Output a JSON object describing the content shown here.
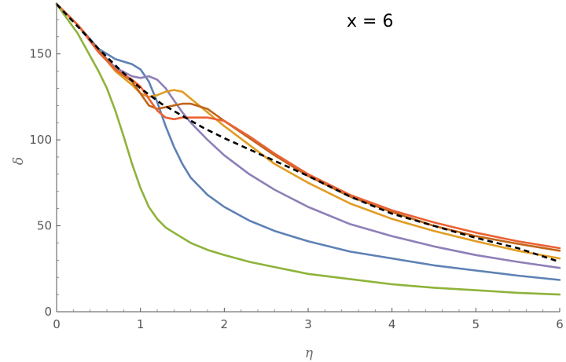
{
  "chart_data": {
    "type": "line",
    "title": "",
    "annotation": "x = 6",
    "xlabel": "η",
    "ylabel": "δ",
    "xlim": [
      0,
      6
    ],
    "ylim": [
      0,
      180
    ],
    "xticks": [
      0,
      1,
      2,
      3,
      4,
      5,
      6
    ],
    "yticks": [
      0,
      50,
      100,
      150
    ],
    "grid": false,
    "legend": "none",
    "series": [
      {
        "color": "#5E81B5",
        "dashed": false,
        "x": [
          0,
          0.25,
          0.5,
          0.7,
          0.9,
          1.0,
          1.1,
          1.2,
          1.3,
          1.4,
          1.5,
          1.6,
          1.8,
          2.0,
          2.3,
          2.6,
          3.0,
          3.5,
          4.0,
          4.5,
          5.0,
          5.5,
          6.0
        ],
        "y": [
          179,
          167,
          153,
          147,
          144,
          141,
          134,
          122,
          108,
          96,
          86,
          78,
          68,
          61,
          53,
          47,
          41,
          35,
          31,
          27,
          24,
          21,
          18.5
        ]
      },
      {
        "color": "#8F7FB8",
        "dashed": false,
        "x": [
          0,
          0.25,
          0.5,
          0.7,
          0.9,
          1.0,
          1.1,
          1.2,
          1.3,
          1.4,
          1.5,
          1.6,
          1.8,
          2.0,
          2.3,
          2.6,
          3.0,
          3.5,
          4.0,
          4.5,
          5.0,
          5.5,
          6.0
        ],
        "y": [
          179,
          167,
          152,
          142,
          137,
          136,
          137,
          135,
          130,
          123,
          116,
          110,
          100,
          91,
          80,
          71,
          61,
          51,
          44,
          38,
          33,
          29,
          25.5
        ]
      },
      {
        "color": "#E19C24",
        "dashed": false,
        "x": [
          0,
          0.25,
          0.5,
          0.7,
          0.9,
          1.0,
          1.1,
          1.2,
          1.3,
          1.4,
          1.5,
          1.6,
          1.8,
          2.0,
          2.3,
          2.6,
          3.0,
          3.5,
          4.0,
          4.5,
          5.0,
          5.5,
          6.0
        ],
        "y": [
          179,
          167,
          152,
          140,
          132,
          127,
          125,
          126,
          128,
          129,
          128,
          124,
          116,
          108,
          97,
          86,
          75,
          63,
          54,
          47,
          41,
          35.5,
          31
        ]
      },
      {
        "color": "#C0651A",
        "dashed": false,
        "x": [
          0,
          0.25,
          0.5,
          0.7,
          0.9,
          1.0,
          1.1,
          1.2,
          1.3,
          1.4,
          1.5,
          1.6,
          1.8,
          2.0,
          2.3,
          2.6,
          3.0,
          3.5,
          4.0,
          4.5,
          5.0,
          5.5,
          6.0
        ],
        "y": [
          179,
          167,
          152,
          141,
          134,
          127,
          120,
          118,
          119,
          120,
          121,
          121,
          118,
          111,
          101,
          91,
          79,
          67,
          58,
          50,
          44,
          39.5,
          35.5
        ]
      },
      {
        "color": "#EB6235",
        "dashed": false,
        "x": [
          0,
          0.25,
          0.5,
          0.7,
          0.9,
          1.0,
          1.1,
          1.2,
          1.3,
          1.4,
          1.5,
          1.6,
          1.8,
          2.0,
          2.3,
          2.6,
          3.0,
          3.5,
          4.0,
          4.5,
          5.0,
          5.5,
          6.0
        ],
        "y": [
          179,
          167,
          151,
          141,
          135,
          131,
          124,
          117,
          113,
          112,
          113,
          113,
          113,
          111,
          102,
          92,
          80,
          68,
          59,
          52,
          46,
          41,
          37
        ]
      },
      {
        "color": "#8EB33B",
        "dashed": false,
        "x": [
          0,
          0.25,
          0.5,
          0.6,
          0.7,
          0.8,
          0.9,
          1.0,
          1.1,
          1.2,
          1.3,
          1.4,
          1.6,
          1.8,
          2.0,
          2.3,
          2.6,
          3.0,
          3.5,
          4.0,
          4.5,
          5.0,
          5.5,
          6.0
        ],
        "y": [
          179,
          162,
          140,
          130,
          117,
          102,
          86,
          72,
          61,
          54,
          49,
          46,
          40,
          36,
          33,
          29,
          26,
          22,
          19,
          16,
          14,
          12.5,
          11,
          10
        ]
      },
      {
        "color": "#000000",
        "dashed": true,
        "x": [
          0,
          0.25,
          0.5,
          0.75,
          1.0,
          1.25,
          1.5,
          1.75,
          2.0,
          2.5,
          3.0,
          3.5,
          4.0,
          4.5,
          5.0,
          5.5,
          6.0
        ],
        "y": [
          179,
          166,
          153,
          141,
          130,
          121,
          114,
          107,
          101,
          90,
          79,
          67,
          57,
          50,
          43,
          37,
          29
        ]
      }
    ]
  }
}
